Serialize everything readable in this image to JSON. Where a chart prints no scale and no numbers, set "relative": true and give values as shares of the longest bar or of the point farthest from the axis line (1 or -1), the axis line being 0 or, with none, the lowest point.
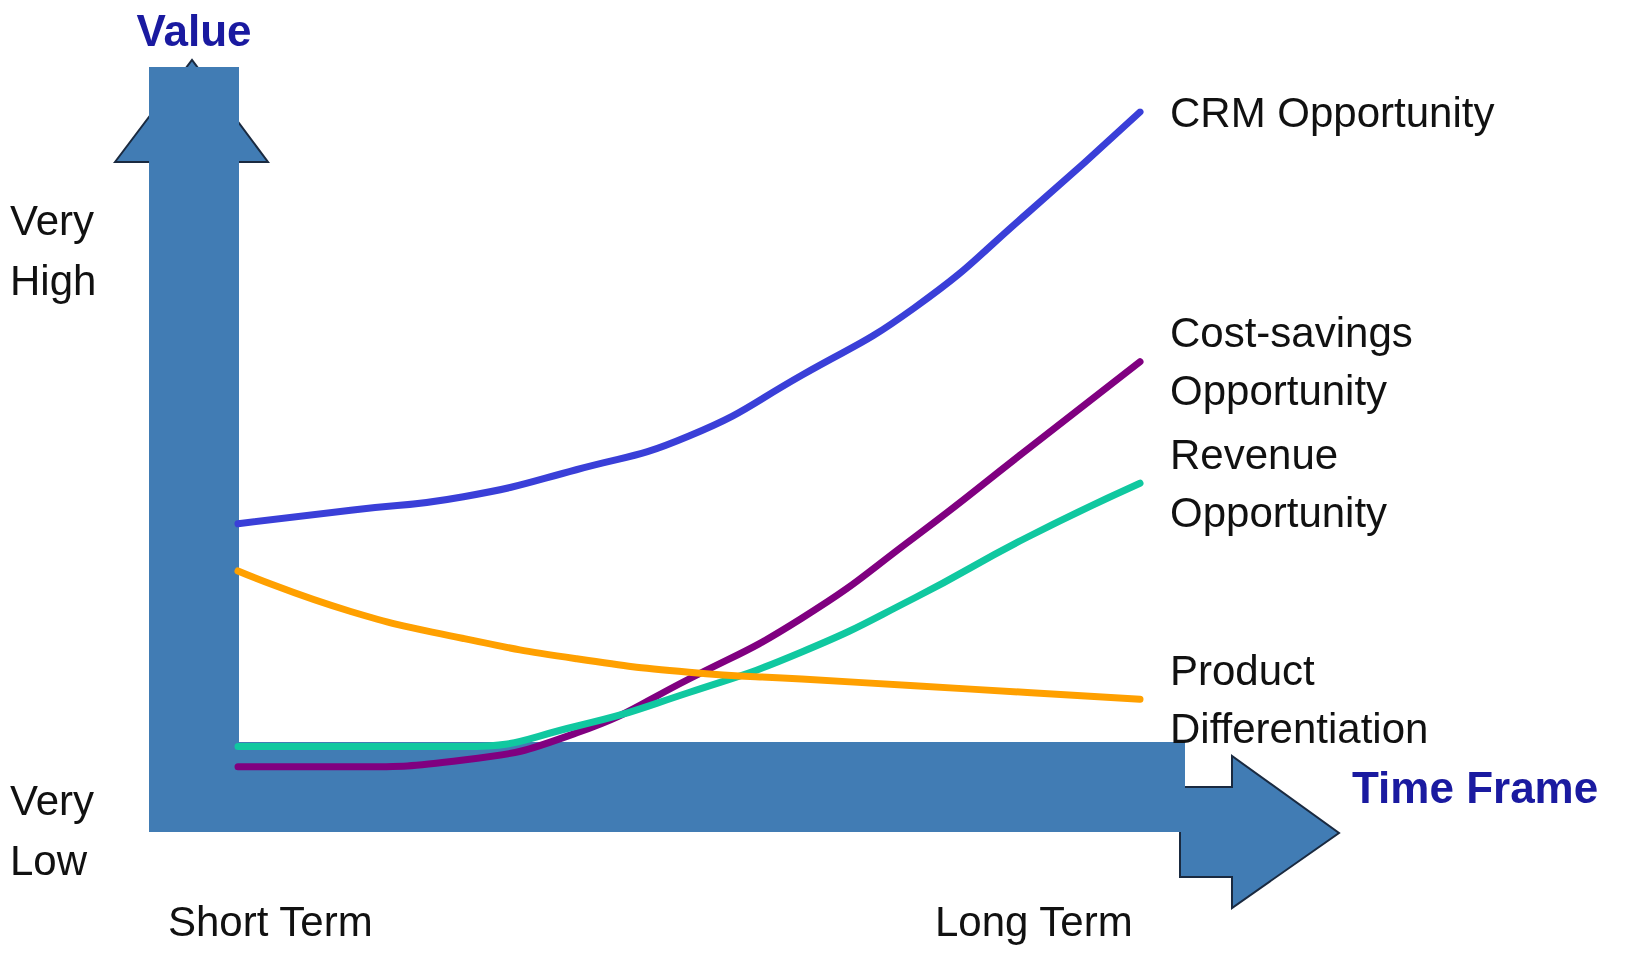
{
  "chart_data": {
    "type": "line",
    "relative": true,
    "xlabel": "Time Frame",
    "ylabel": "Value",
    "categories": [
      null,
      null,
      null,
      null,
      null,
      null,
      null,
      null,
      null
    ],
    "series": [
      {
        "name": "CRM Opportunity",
        "color": "#3a3fd8",
        "values": [
          0.39,
          0.41,
          0.43,
          0.47,
          0.52,
          0.61,
          0.71,
          0.85,
          1.0
        ]
      },
      {
        "name": "Cost-savings Opportunity",
        "color": "#800080",
        "values": [
          0.03,
          0.03,
          0.04,
          0.08,
          0.16,
          0.25,
          0.37,
          0.5,
          0.63
        ]
      },
      {
        "name": "Revenue Opportunity",
        "color": "#10c8a0",
        "values": [
          0.06,
          0.06,
          0.06,
          0.09,
          0.14,
          0.2,
          0.28,
          0.37,
          0.45
        ]
      },
      {
        "name": "Product Differentiation",
        "color": "#ffa000",
        "values": [
          0.32,
          0.26,
          0.22,
          0.19,
          0.17,
          0.16,
          0.15,
          0.14,
          0.13
        ]
      }
    ],
    "annotations": [
      "Very High",
      "Very Low",
      "Short Term",
      "Long Term"
    ],
    "marker": "none",
    "line_style": "solid",
    "grid": false,
    "legend": false
  }
}
